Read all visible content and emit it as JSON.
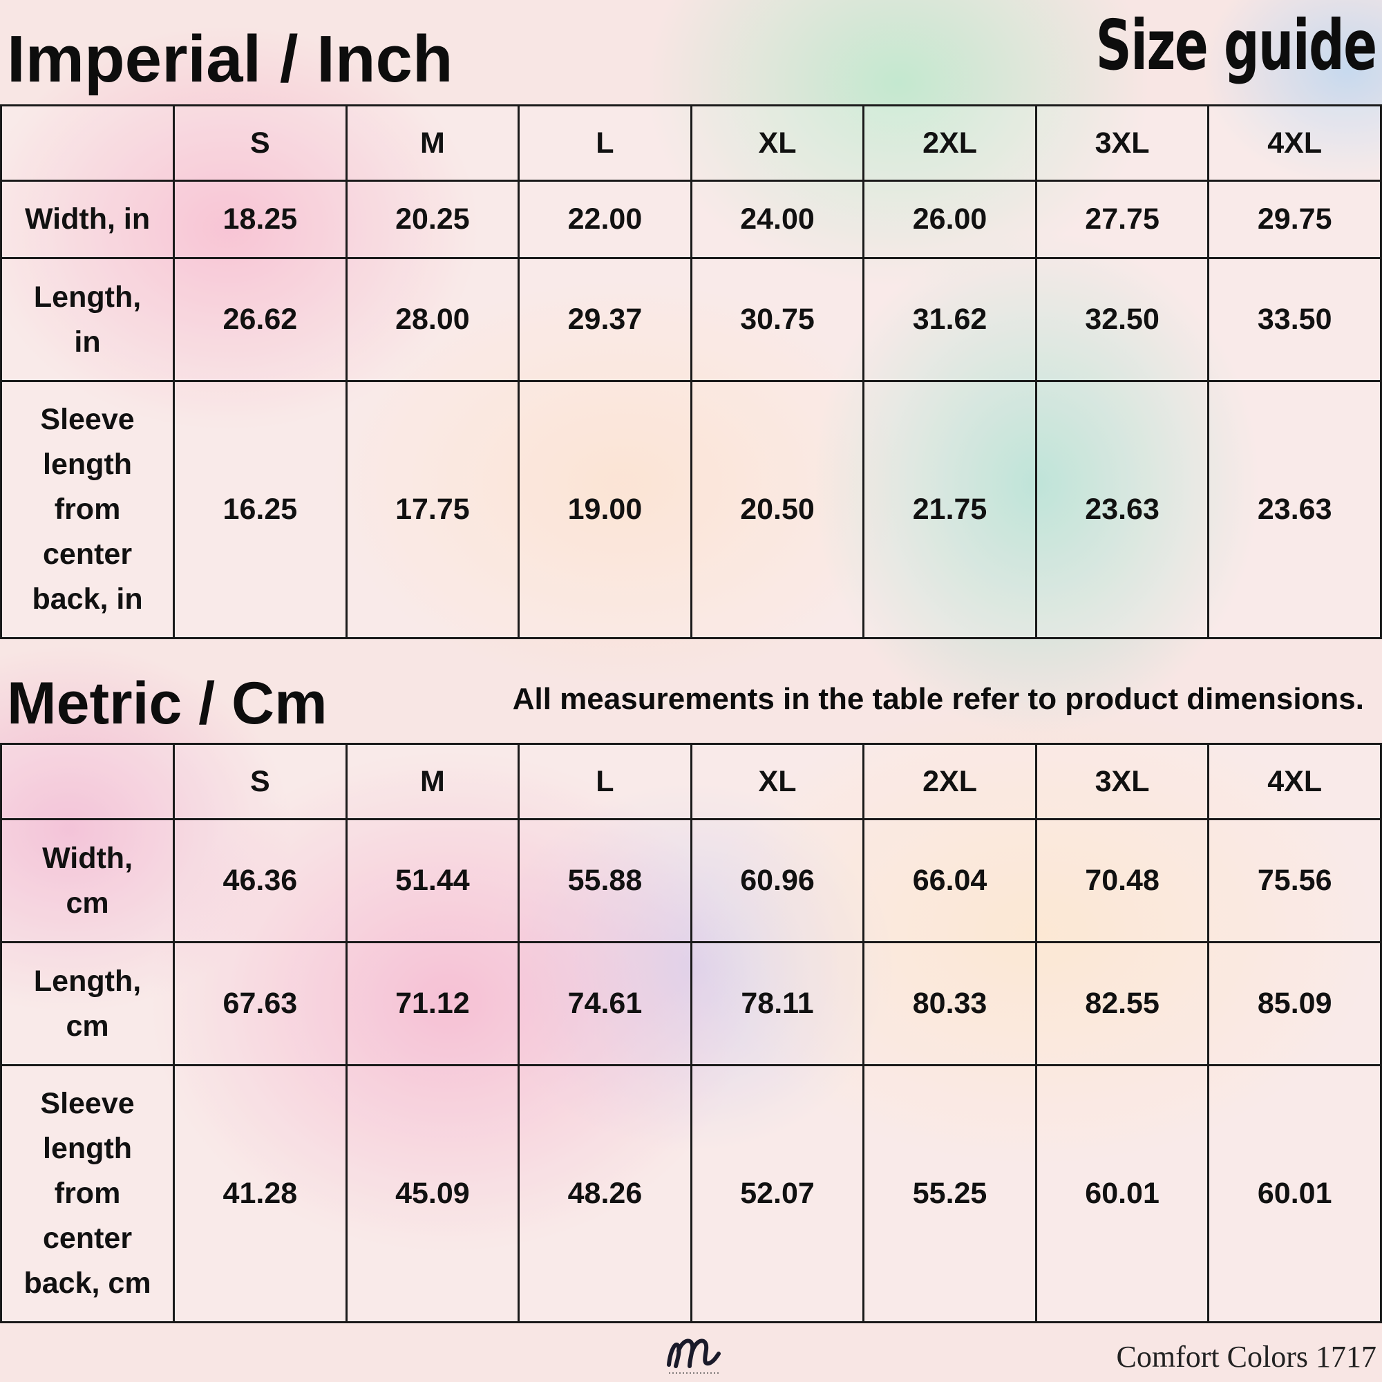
{
  "imperial": {
    "title": "Imperial / Inch",
    "sizes": [
      "S",
      "M",
      "L",
      "XL",
      "2XL",
      "3XL",
      "4XL"
    ],
    "rows": [
      {
        "label": [
          "Width, in"
        ],
        "values": [
          "18.25",
          "20.25",
          "22.00",
          "24.00",
          "26.00",
          "27.75",
          "29.75"
        ]
      },
      {
        "label": [
          "Length,",
          "in"
        ],
        "values": [
          "26.62",
          "28.00",
          "29.37",
          "30.75",
          "31.62",
          "32.50",
          "33.50"
        ]
      },
      {
        "label": [
          "Sleeve",
          "length",
          "from",
          "center",
          "back, in"
        ],
        "values": [
          "16.25",
          "17.75",
          "19.00",
          "20.50",
          "21.75",
          "23.63",
          "23.63"
        ]
      }
    ]
  },
  "metric": {
    "title": "Metric / Cm",
    "sizes": [
      "S",
      "M",
      "L",
      "XL",
      "2XL",
      "3XL",
      "4XL"
    ],
    "rows": [
      {
        "label": [
          "Width,",
          "cm"
        ],
        "values": [
          "46.36",
          "51.44",
          "55.88",
          "60.96",
          "66.04",
          "70.48",
          "75.56"
        ]
      },
      {
        "label": [
          "Length,",
          "cm"
        ],
        "values": [
          "67.63",
          "71.12",
          "74.61",
          "78.11",
          "80.33",
          "82.55",
          "85.09"
        ]
      },
      {
        "label": [
          "Sleeve",
          "length",
          "from",
          "center",
          "back, cm"
        ],
        "values": [
          "41.28",
          "45.09",
          "48.26",
          "52.07",
          "55.25",
          "60.01",
          "60.01"
        ]
      }
    ]
  },
  "header": {
    "size_guide": "Size guide"
  },
  "note": "All measurements in the table refer to product dimensions.",
  "footer": {
    "logo_text": "m",
    "brand": "Comfort Colors 1717"
  },
  "colors": {
    "text": "#111111",
    "border": "#1a1a1a"
  }
}
